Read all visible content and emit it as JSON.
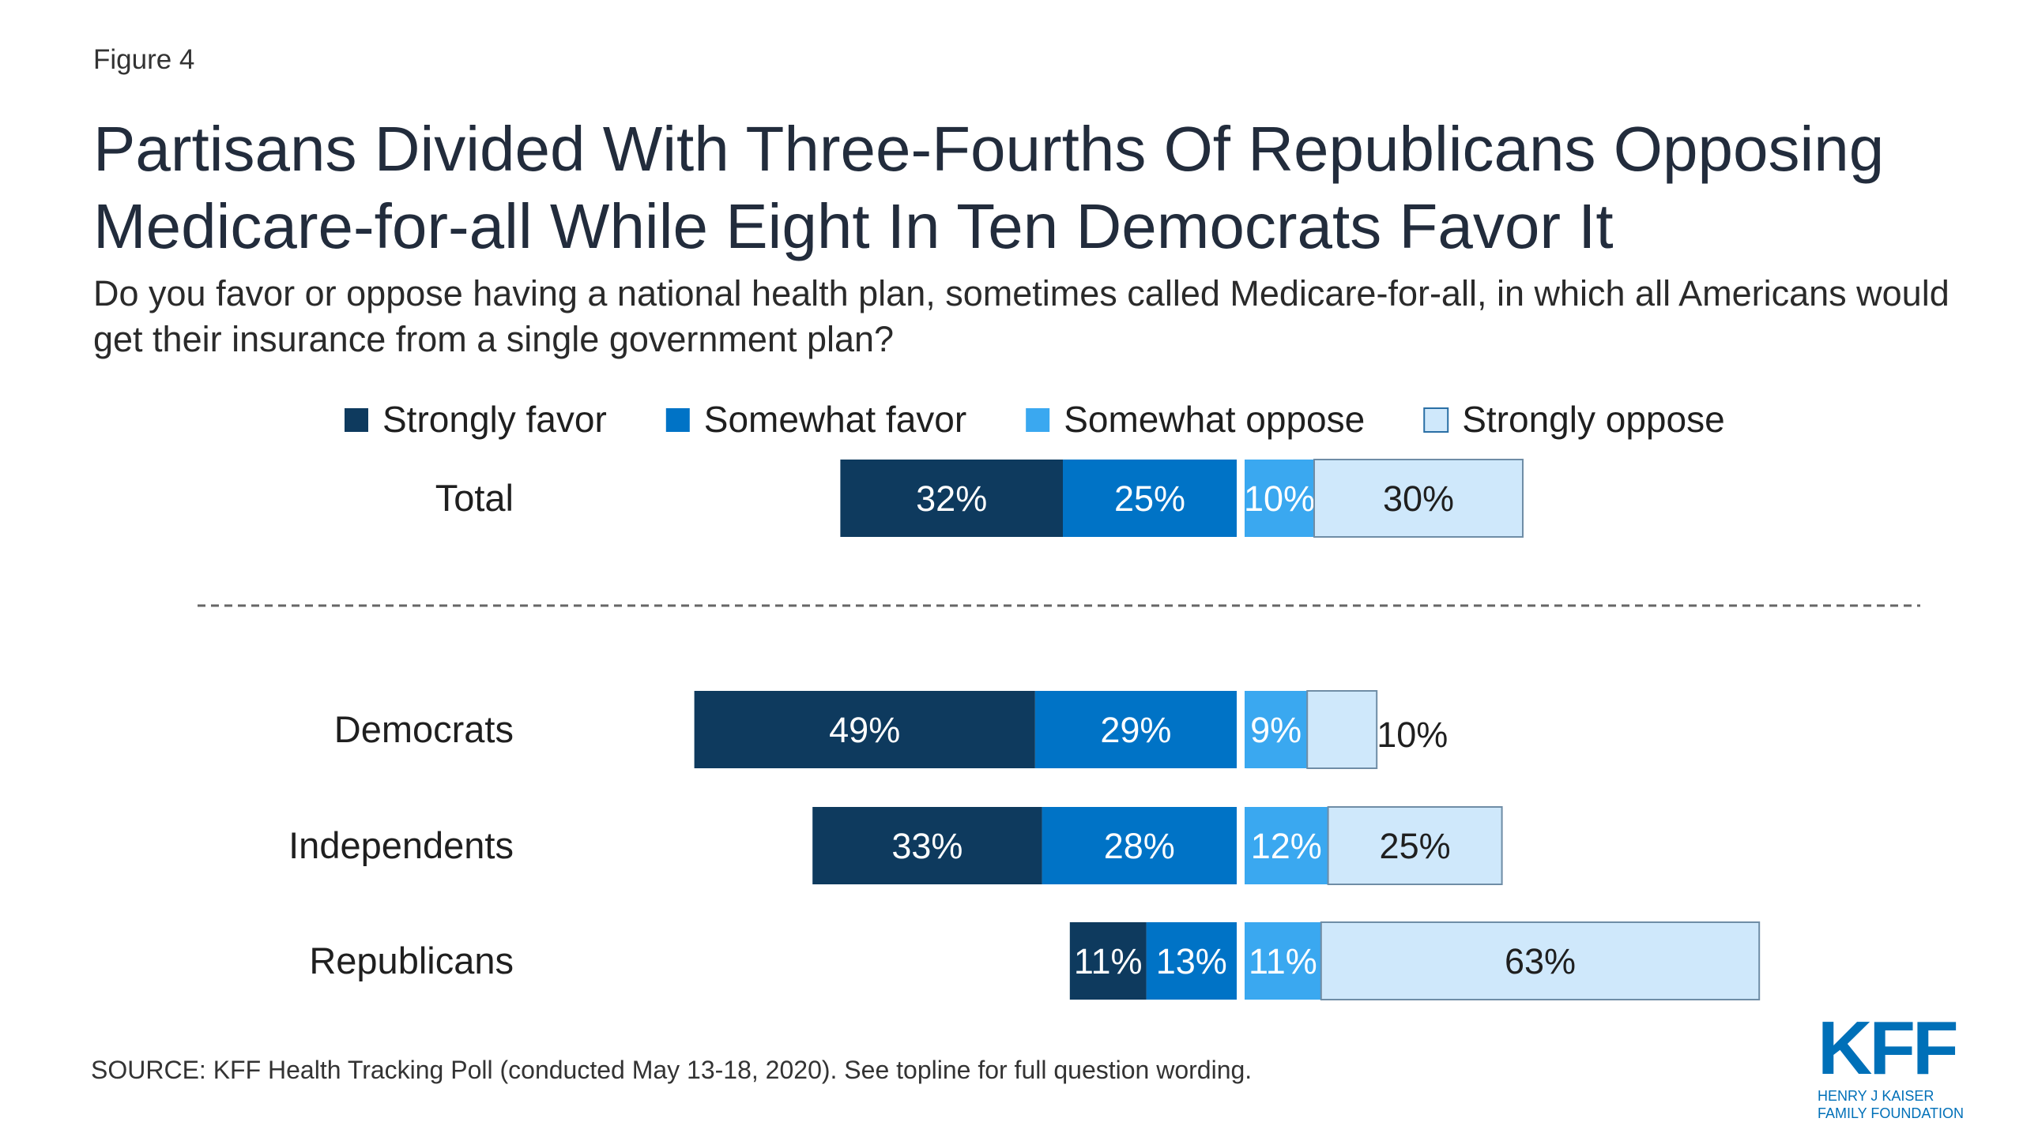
{
  "figure_label": "Figure 4",
  "title": "Partisans Divided With Three-Fourths Of Republicans Opposing Medicare-for-all While Eight In Ten Democrats Favor It",
  "subtitle": "Do you favor or oppose having a national health plan, sometimes called Medicare-for-all, in which all Americans would get their insurance from a single government plan?",
  "source": "SOURCE: KFF Health Tracking Poll (conducted May 13-18, 2020). See topline for full question wording.",
  "logo": {
    "mark": "KFF",
    "line1": "HENRY J KAISER",
    "line2": "FAMILY FOUNDATION"
  },
  "chart_data": {
    "type": "bar",
    "orientation": "horizontal",
    "stacking": "diverging",
    "categories": [
      "Total",
      "Democrats",
      "Independents",
      "Republicans"
    ],
    "series": [
      {
        "name": "Strongly favor",
        "side": "favor",
        "color": "#0e3a5e",
        "label_color": "#ffffff",
        "values": [
          32,
          49,
          33,
          11
        ]
      },
      {
        "name": "Somewhat favor",
        "side": "favor",
        "color": "#0073c6",
        "label_color": "#ffffff",
        "values": [
          25,
          29,
          28,
          13
        ]
      },
      {
        "name": "Somewhat oppose",
        "side": "oppose",
        "color": "#3aa8f0",
        "label_color": "#ffffff",
        "values": [
          10,
          9,
          12,
          11
        ]
      },
      {
        "name": "Strongly oppose",
        "side": "oppose",
        "color": "#cfe8fb",
        "label_color": "#1f1f1f",
        "values": [
          30,
          10,
          25,
          63
        ]
      }
    ],
    "data_labels": [
      [
        "32%",
        "49%",
        "33%",
        "11%"
      ],
      [
        "25%",
        "29%",
        "28%",
        "13%"
      ],
      [
        "10%",
        "9%",
        "12%",
        "11%"
      ],
      [
        "30%",
        "10%",
        "25%",
        "63%"
      ]
    ],
    "legend": "top",
    "separator_after": "Total"
  }
}
